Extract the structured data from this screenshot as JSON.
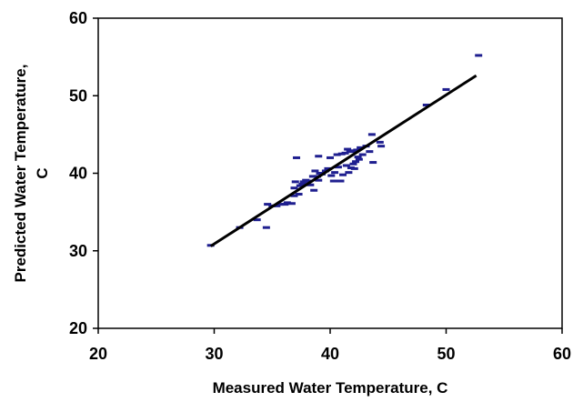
{
  "chart_data": {
    "type": "scatter",
    "title": "",
    "xlabel": "Measured Water Temperature, C",
    "ylabel_lines": [
      "Predicted Water Temperature,",
      "C"
    ],
    "xlim": [
      20,
      60
    ],
    "ylim": [
      20,
      60
    ],
    "x_ticks": [
      20,
      30,
      40,
      50,
      60
    ],
    "y_ticks": [
      20,
      30,
      40,
      50,
      60
    ],
    "grid": false,
    "legend": "none",
    "marker_color": "#1f1f8f",
    "line_color": "#000000",
    "series": [
      {
        "values": [
          [
            29.7,
            30.7
          ],
          [
            32.2,
            33.0
          ],
          [
            33.7,
            34.0
          ],
          [
            34.5,
            33.0
          ],
          [
            34.6,
            36.0
          ],
          [
            35.0,
            35.8
          ],
          [
            35.4,
            35.8
          ],
          [
            35.7,
            36.0
          ],
          [
            36.1,
            36.0
          ],
          [
            36.3,
            36.2
          ],
          [
            36.7,
            36.1
          ],
          [
            36.9,
            37.1
          ],
          [
            36.9,
            38.1
          ],
          [
            37.0,
            38.9
          ],
          [
            37.1,
            42.0
          ],
          [
            37.3,
            37.3
          ],
          [
            37.4,
            38.4
          ],
          [
            37.6,
            38.6
          ],
          [
            37.7,
            38.9
          ],
          [
            37.9,
            39.1
          ],
          [
            38.1,
            39.0
          ],
          [
            38.3,
            38.5
          ],
          [
            38.5,
            39.6
          ],
          [
            38.6,
            37.8
          ],
          [
            38.7,
            40.3
          ],
          [
            38.9,
            39.6
          ],
          [
            39.0,
            39.1
          ],
          [
            39.0,
            42.2
          ],
          [
            39.1,
            40.0
          ],
          [
            39.3,
            39.9
          ],
          [
            39.6,
            40.3
          ],
          [
            39.8,
            40.6
          ],
          [
            40.0,
            42.0
          ],
          [
            40.1,
            39.7
          ],
          [
            40.3,
            39.0
          ],
          [
            40.4,
            40.1
          ],
          [
            40.6,
            42.4
          ],
          [
            40.7,
            40.8
          ],
          [
            40.9,
            39.0
          ],
          [
            41.0,
            42.5
          ],
          [
            41.1,
            39.8
          ],
          [
            41.3,
            42.6
          ],
          [
            41.4,
            41.0
          ],
          [
            41.5,
            43.1
          ],
          [
            41.6,
            40.1
          ],
          [
            41.7,
            42.9
          ],
          [
            41.8,
            40.7
          ],
          [
            41.9,
            42.8
          ],
          [
            42.0,
            41.2
          ],
          [
            42.1,
            40.6
          ],
          [
            42.2,
            41.5
          ],
          [
            42.3,
            43.0
          ],
          [
            42.4,
            42.1
          ],
          [
            42.5,
            41.8
          ],
          [
            42.6,
            43.3
          ],
          [
            42.8,
            42.4
          ],
          [
            43.1,
            43.5
          ],
          [
            43.4,
            42.8
          ],
          [
            43.6,
            45.0
          ],
          [
            43.7,
            41.4
          ],
          [
            44.3,
            44.0
          ],
          [
            44.4,
            43.5
          ],
          [
            48.3,
            48.8
          ],
          [
            50.0,
            50.8
          ],
          [
            52.8,
            55.2
          ]
        ]
      }
    ],
    "fit_line": {
      "x": [
        29.7,
        52.6
      ],
      "y": [
        30.6,
        52.6
      ]
    }
  }
}
